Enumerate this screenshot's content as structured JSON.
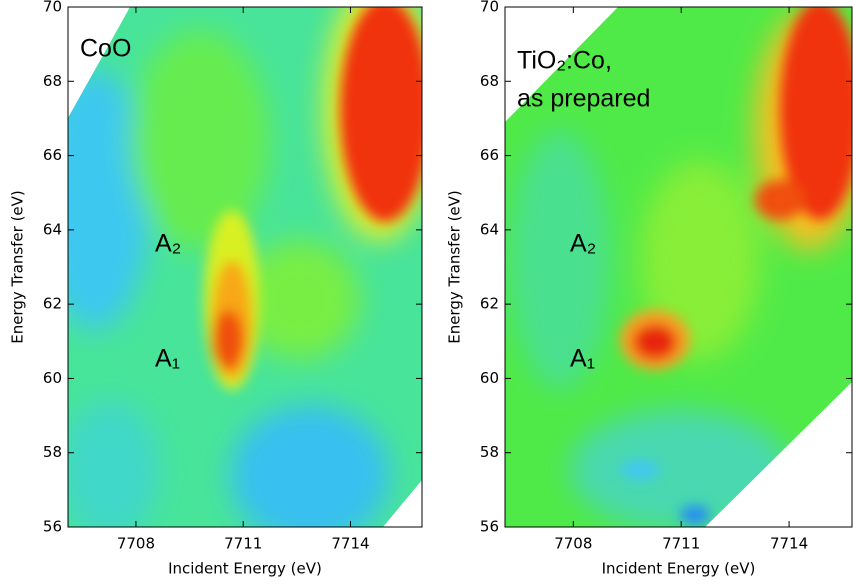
{
  "chart_data": [
    {
      "type": "heatmap",
      "xlabel": "Incident Energy (eV)",
      "ylabel": "Energy Transfer (eV)",
      "xlim": [
        7706.1,
        7716
      ],
      "ylim": [
        56,
        70
      ],
      "xticks": [
        7708,
        7711,
        7714
      ],
      "yticks": [
        56,
        58,
        60,
        62,
        64,
        66,
        68,
        70
      ],
      "annotations": [
        "CoO",
        "A₂",
        "A₁"
      ]
    },
    {
      "type": "heatmap",
      "xlabel": "Incident Energy (eV)",
      "ylabel": "Energy Transfer (eV)",
      "xlim": [
        7706.1,
        7715.75
      ],
      "ylim": [
        56,
        70
      ],
      "xticks": [
        7708,
        7711,
        7714
      ],
      "yticks": [
        56,
        58,
        60,
        62,
        64,
        66,
        68,
        70
      ],
      "annotations": [
        "TiO₂:Co,",
        "as prepared",
        "A₂",
        "A₁"
      ]
    }
  ]
}
